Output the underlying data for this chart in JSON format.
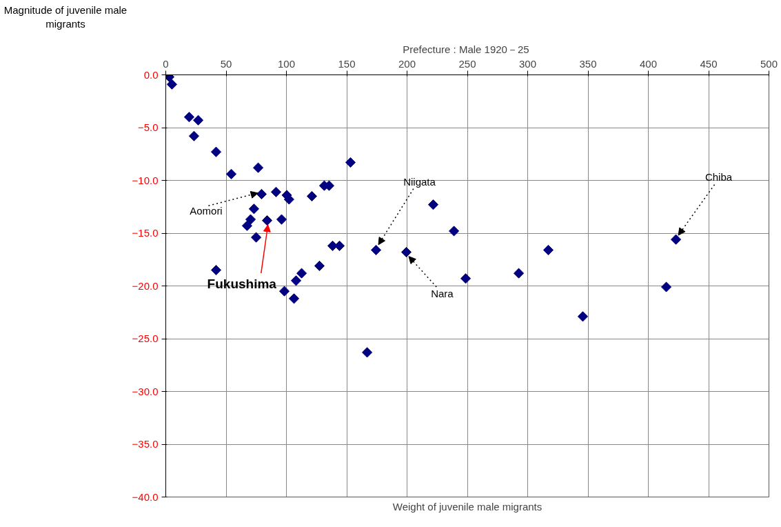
{
  "chart_data": {
    "type": "scatter",
    "title": "Prefecture : Male  1920－25",
    "xlabel": "Weight of juvenile male migrants",
    "ylabel": "Magnitude of juvenile male migrants",
    "series": [
      {
        "color": "#000080",
        "x": [
          2.9,
          5.1,
          19.4,
          26.9,
          23.4,
          41.7,
          54.3,
          76.6,
          79.4,
          91.4,
          100.3,
          102.2,
          121.1,
          131.4,
          135.4,
          153.1,
          73.1,
          70.3,
          67.4,
          84.0,
          96.0,
          74.9,
          41.7,
          138.3,
          144.0,
          127.4,
          112.6,
          108.0,
          98.3,
          106.3,
          174.3,
          199.4,
          221.7,
          238.9,
          248.6,
          166.9,
          292.6,
          317.1,
          345.7,
          414.9,
          422.9
        ],
        "values": [
          -0.2,
          -0.9,
          -4.0,
          -4.3,
          -5.8,
          -7.3,
          -9.4,
          -8.8,
          -11.3,
          -11.1,
          -11.4,
          -11.8,
          -11.5,
          -10.5,
          -10.5,
          -8.3,
          -12.7,
          -13.7,
          -14.3,
          -13.8,
          -13.7,
          -15.4,
          -18.5,
          -16.2,
          -16.2,
          -18.1,
          -18.8,
          -19.5,
          -20.5,
          -21.2,
          -16.6,
          -16.8,
          -12.3,
          -14.8,
          -19.3,
          -26.3,
          -18.8,
          -16.6,
          -22.9,
          -20.1,
          -15.6
        ]
      }
    ],
    "annotations": [
      {
        "text": "Aomori",
        "x": 79.4,
        "y": -11.3
      },
      {
        "text": "Fukushima",
        "x": 84.0,
        "y": -13.8
      },
      {
        "text": "Niigata",
        "x": 174.3,
        "y": -16.6
      },
      {
        "text": "Nara",
        "x": 199.4,
        "y": -16.8
      },
      {
        "text": "Chiba",
        "x": 422.9,
        "y": -15.6
      }
    ],
    "xlim": [
      0,
      500
    ],
    "xticks": [
      0,
      50,
      100,
      150,
      200,
      250,
      300,
      350,
      400,
      450,
      500
    ],
    "ylim": [
      -40,
      0
    ],
    "yticks": [
      {
        "value": 0,
        "label": "0.0"
      },
      {
        "value": -5,
        "label": "−5.0"
      },
      {
        "value": -10,
        "label": "−10.0"
      },
      {
        "value": -15,
        "label": "−15.0"
      },
      {
        "value": -20,
        "label": "−20.0"
      },
      {
        "value": -25,
        "label": "−25.0"
      },
      {
        "value": -30,
        "label": "−30.0"
      },
      {
        "value": -35,
        "label": "−35.0"
      },
      {
        "value": -40,
        "label": "−40.0"
      }
    ],
    "grid": true,
    "marker": "diamond"
  }
}
